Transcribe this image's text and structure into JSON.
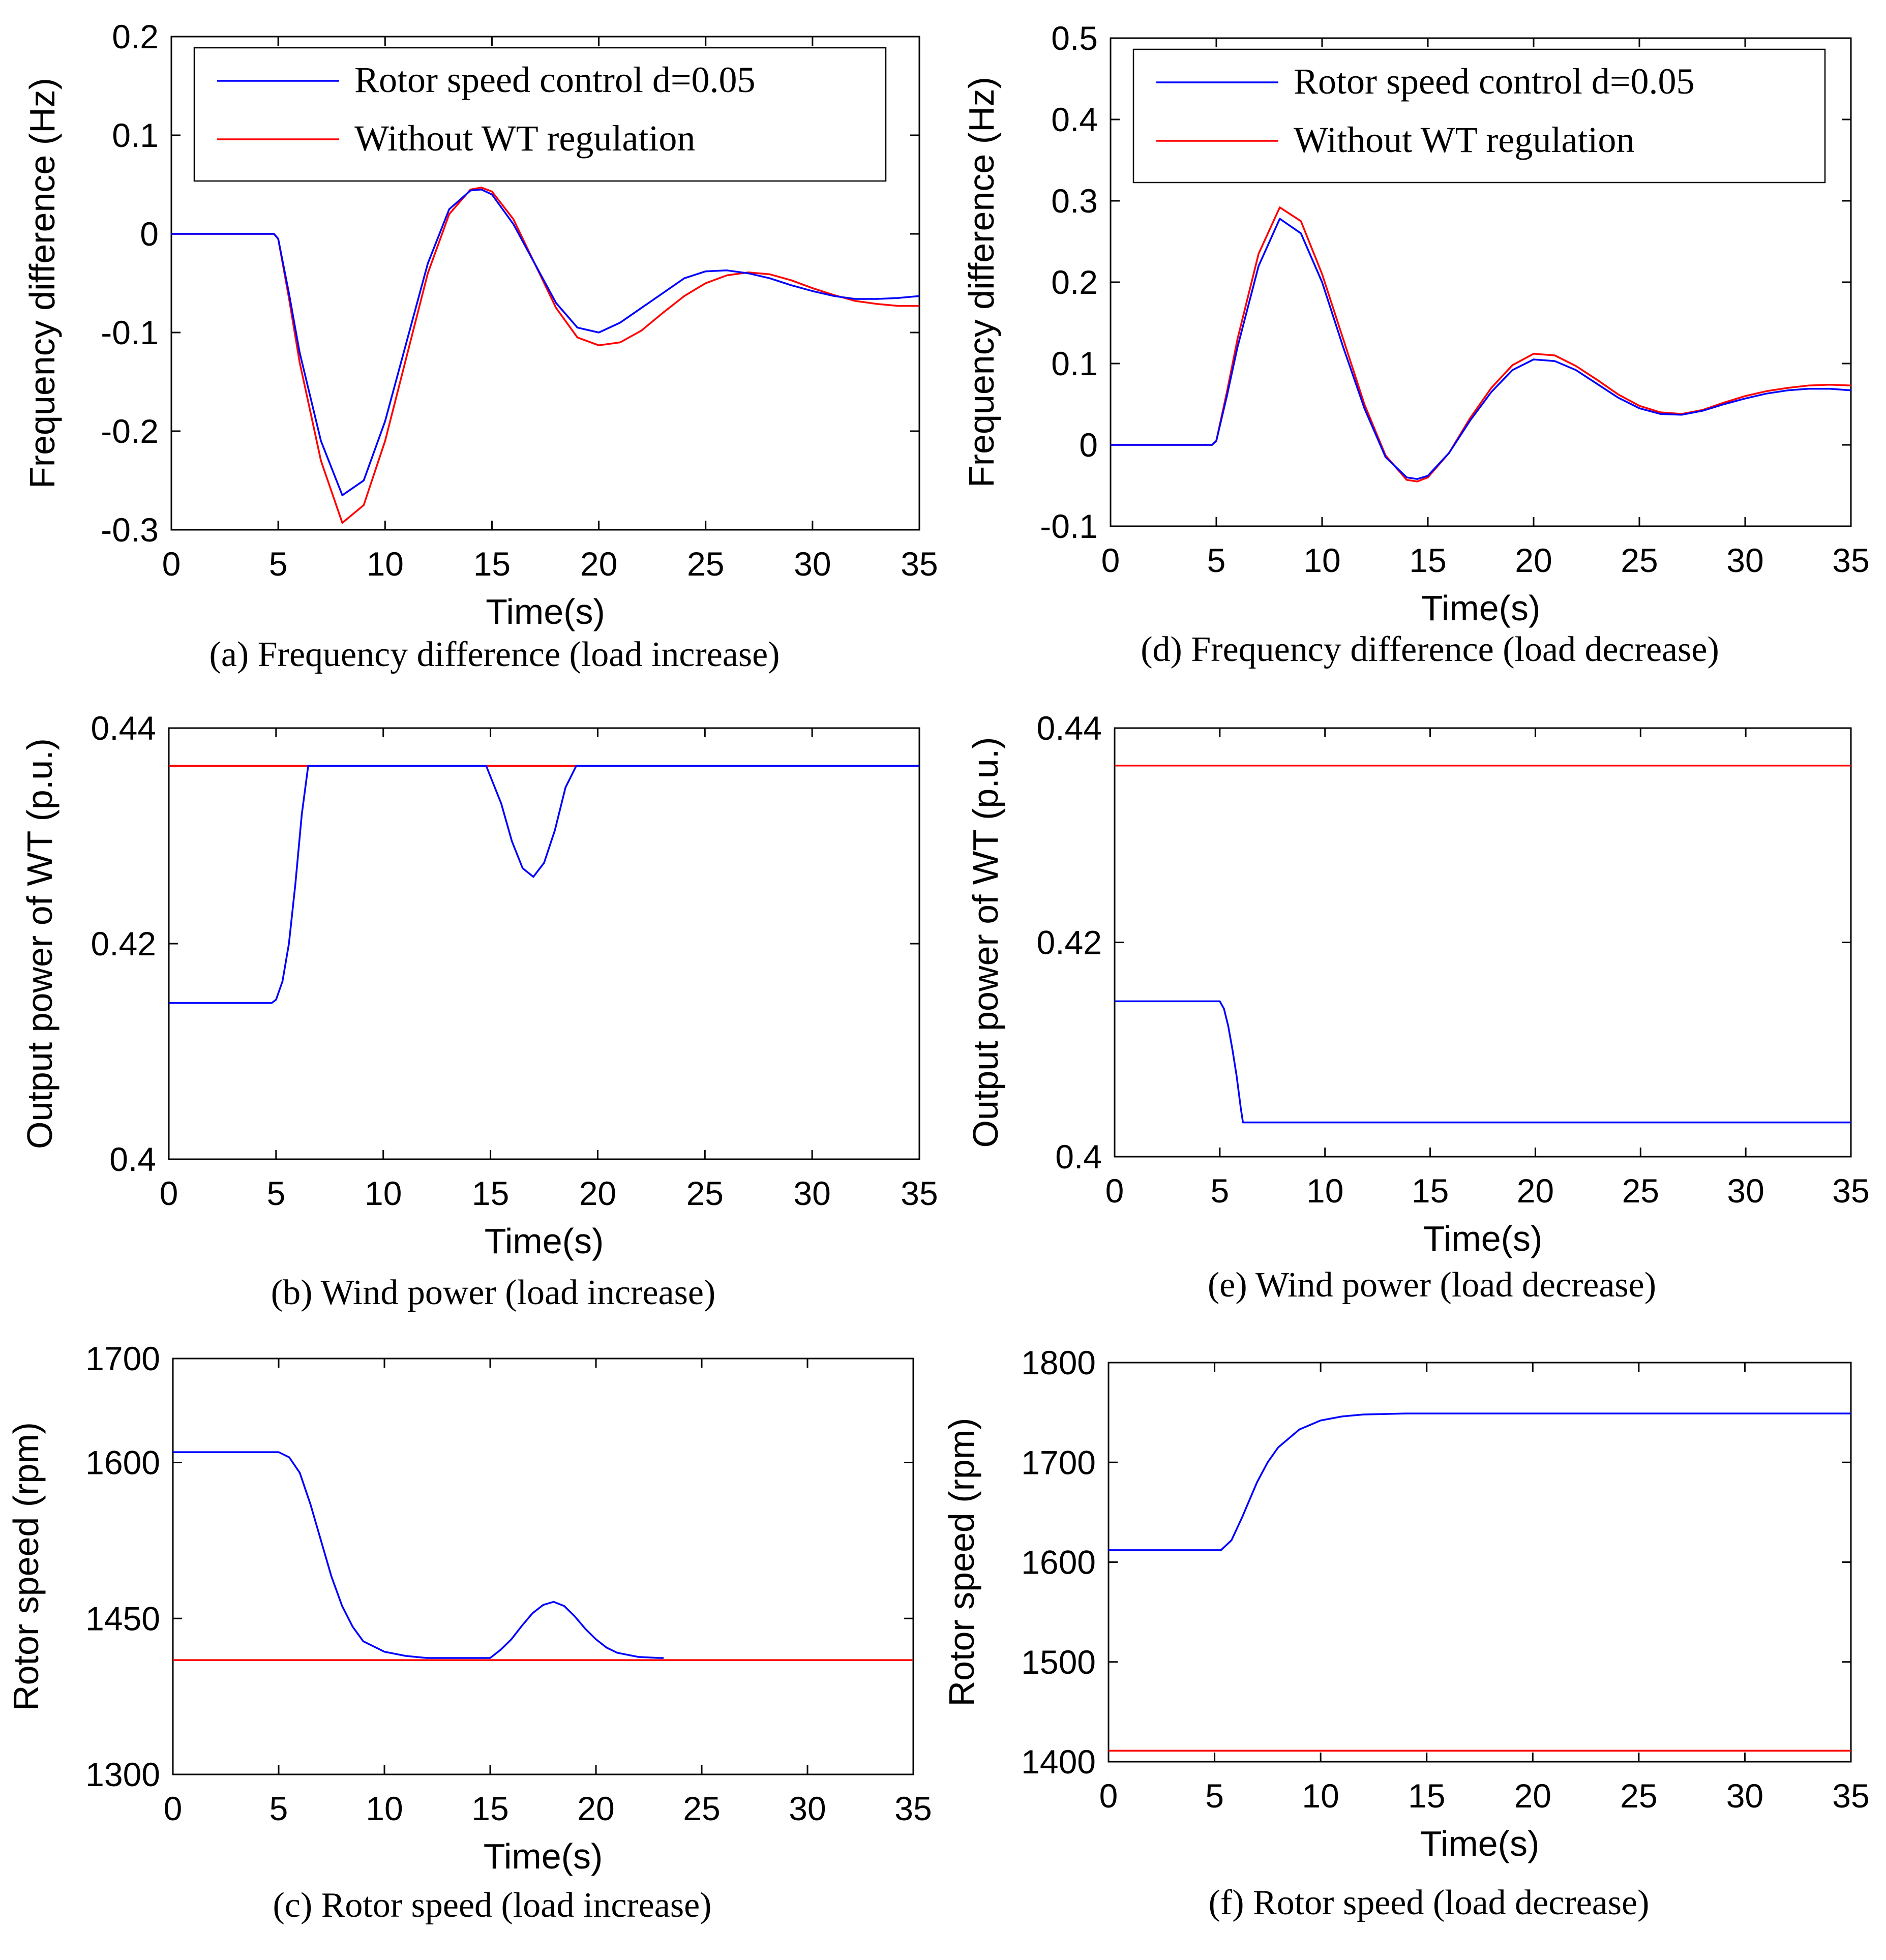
{
  "colors": {
    "series1": "#0000ff",
    "series2": "#ff0000",
    "axis": "#000000",
    "background": "#ffffff"
  },
  "charts": [
    {
      "id": "a",
      "caption": "(a) Frequency difference (load increase)",
      "ylabel": "Frequency difference (Hz)",
      "xlabel": "Time(s)",
      "legend_labels": [
        "Rotor speed control d=0.05",
        "Without WT regulation"
      ],
      "x_ticks": [
        "0",
        "5",
        "10",
        "15",
        "20",
        "25",
        "30",
        "35"
      ],
      "y_ticks": [
        "0.2",
        "0.1",
        "0",
        "-0.1",
        "-0.2",
        "-0.3"
      ]
    },
    {
      "id": "b",
      "caption": "(b) Wind power (load increase)",
      "ylabel": "Output power of WT (p.u.)",
      "xlabel": "Time(s)",
      "x_ticks": [
        "0",
        "5",
        "10",
        "15",
        "20",
        "25",
        "30",
        "35"
      ],
      "y_ticks": [
        "0.44",
        "0.42",
        "0.4"
      ]
    },
    {
      "id": "c",
      "caption": "(c) Rotor speed (load increase)",
      "ylabel": "Rotor speed (rpm)",
      "xlabel": "Time(s)",
      "x_ticks": [
        "0",
        "5",
        "10",
        "15",
        "20",
        "25",
        "30",
        "35"
      ],
      "y_ticks": [
        "1700",
        "1600",
        "1450",
        "1300"
      ]
    },
    {
      "id": "d",
      "caption": "(d) Frequency difference (load decrease)",
      "ylabel": "Frequency difference (Hz)",
      "xlabel": "Time(s)",
      "legend_labels": [
        "Rotor speed control d=0.05",
        "Without WT regulation"
      ],
      "x_ticks": [
        "0",
        "5",
        "10",
        "15",
        "20",
        "25",
        "30",
        "35"
      ],
      "y_ticks": [
        "0.5",
        "0.4",
        "0.3",
        "0.2",
        "0.1",
        "0",
        "-0.1"
      ]
    },
    {
      "id": "e",
      "caption": "(e) Wind power (load decrease)",
      "ylabel": "Output power of WT (p.u.)",
      "xlabel": "Time(s)",
      "x_ticks": [
        "0",
        "5",
        "10",
        "15",
        "20",
        "25",
        "30",
        "35"
      ],
      "y_ticks": [
        "0.44",
        "0.42",
        "0.4"
      ]
    },
    {
      "id": "f",
      "caption": "(f) Rotor speed (load decrease)",
      "ylabel": "Rotor speed (rpm)",
      "xlabel": "Time(s)",
      "x_ticks": [
        "0",
        "5",
        "10",
        "15",
        "20",
        "25",
        "30",
        "35"
      ],
      "y_ticks": [
        "1800",
        "1700",
        "1600",
        "1500",
        "1400"
      ]
    }
  ],
  "chart_data": [
    {
      "id": "a",
      "type": "line",
      "title": "(a) Frequency difference (load increase)",
      "xlabel": "Time(s)",
      "ylabel": "Frequency difference (Hz)",
      "xlim": [
        0,
        35
      ],
      "ylim": [
        -0.3,
        0.2
      ],
      "grid": false,
      "legend": "top-right",
      "series": [
        {
          "name": "Rotor speed control d=0.05",
          "x": [
            0,
            4.8,
            5,
            5.5,
            6,
            7,
            8,
            9,
            10,
            11,
            12,
            13,
            14,
            14.5,
            15,
            16,
            17,
            18,
            19,
            20,
            21,
            22,
            23,
            24,
            25,
            26,
            27,
            28,
            29,
            30,
            31,
            32,
            33,
            34,
            35
          ],
          "y": [
            0,
            0,
            -0.005,
            -0.06,
            -0.12,
            -0.21,
            -0.265,
            -0.25,
            -0.19,
            -0.11,
            -0.03,
            0.025,
            0.044,
            0.045,
            0.04,
            0.01,
            -0.03,
            -0.07,
            -0.095,
            -0.1,
            -0.09,
            -0.075,
            -0.06,
            -0.045,
            -0.038,
            -0.037,
            -0.04,
            -0.045,
            -0.052,
            -0.058,
            -0.063,
            -0.066,
            -0.066,
            -0.065,
            -0.063
          ]
        },
        {
          "name": "Without WT regulation",
          "x": [
            0,
            4.8,
            5,
            5.5,
            6,
            7,
            8,
            9,
            10,
            11,
            12,
            13,
            14,
            14.5,
            15,
            16,
            17,
            18,
            19,
            20,
            21,
            22,
            23,
            24,
            25,
            26,
            27,
            28,
            29,
            30,
            31,
            32,
            33,
            34,
            35
          ],
          "y": [
            0,
            0,
            -0.005,
            -0.065,
            -0.13,
            -0.23,
            -0.293,
            -0.275,
            -0.21,
            -0.125,
            -0.04,
            0.02,
            0.045,
            0.047,
            0.043,
            0.015,
            -0.03,
            -0.075,
            -0.105,
            -0.113,
            -0.11,
            -0.098,
            -0.08,
            -0.063,
            -0.05,
            -0.042,
            -0.039,
            -0.041,
            -0.047,
            -0.055,
            -0.062,
            -0.068,
            -0.071,
            -0.073,
            -0.073
          ]
        }
      ]
    },
    {
      "id": "b",
      "type": "line",
      "title": "(b) Wind power (load increase)",
      "xlabel": "Time(s)",
      "ylabel": "Output power of WT (p.u.)",
      "xlim": [
        0,
        35
      ],
      "ylim": [
        0.4,
        0.44
      ],
      "grid": false,
      "series": [
        {
          "name": "Rotor speed control d=0.05",
          "x": [
            0,
            4.8,
            5,
            5.3,
            5.6,
            5.9,
            6.2,
            6.5,
            7,
            10,
            13.5,
            14.8,
            15.5,
            16,
            16.5,
            17,
            17.5,
            18,
            18.5,
            19,
            20,
            35
          ],
          "y": [
            0.4145,
            0.4145,
            0.4148,
            0.4165,
            0.42,
            0.4255,
            0.432,
            0.4365,
            0.4365,
            0.4365,
            0.4365,
            0.4365,
            0.433,
            0.4295,
            0.427,
            0.4262,
            0.4275,
            0.4305,
            0.4345,
            0.4365,
            0.4365,
            0.4365
          ]
        },
        {
          "name": "Without WT regulation",
          "x": [
            0,
            35
          ],
          "y": [
            0.4365,
            0.4365
          ]
        }
      ]
    },
    {
      "id": "c",
      "type": "line",
      "title": "(c) Rotor speed (load increase)",
      "xlabel": "Time(s)",
      "ylabel": "Rotor speed (rpm)",
      "xlim": [
        0,
        35
      ],
      "ylim": [
        1300,
        1700
      ],
      "grid": false,
      "series": [
        {
          "name": "Rotor speed control d=0.05",
          "x": [
            0,
            5,
            5.5,
            6,
            6.5,
            7,
            7.5,
            8,
            8.5,
            9,
            10,
            11,
            12,
            15,
            15.5,
            16,
            16.5,
            17,
            17.5,
            18,
            18.5,
            19,
            19.5,
            20,
            20.5,
            21,
            22,
            23,
            23.2
          ],
          "y": [
            1610,
            1610,
            1605,
            1590,
            1560,
            1525,
            1490,
            1462,
            1442,
            1428,
            1418,
            1414,
            1412,
            1412,
            1420,
            1430,
            1443,
            1455,
            1463,
            1466,
            1462,
            1452,
            1440,
            1430,
            1422,
            1417,
            1413,
            1412,
            1412
          ]
        },
        {
          "name": "Without WT regulation",
          "x": [
            0,
            35
          ],
          "y": [
            1410,
            1410
          ]
        }
      ]
    },
    {
      "id": "d",
      "type": "line",
      "title": "(d) Frequency difference (load decrease)",
      "xlabel": "Time(s)",
      "ylabel": "Frequency difference (Hz)",
      "xlim": [
        0,
        35
      ],
      "ylim": [
        -0.1,
        0.5
      ],
      "grid": false,
      "legend": "top-right",
      "series": [
        {
          "name": "Rotor speed control d=0.05",
          "x": [
            0,
            4.8,
            5,
            5.5,
            6,
            7,
            8,
            9,
            10,
            11,
            12,
            13,
            14,
            14.5,
            15,
            16,
            17,
            18,
            19,
            20,
            21,
            22,
            23,
            24,
            25,
            26,
            27,
            28,
            29,
            30,
            31,
            32,
            33,
            34,
            35
          ],
          "y": [
            0,
            0,
            0.005,
            0.06,
            0.12,
            0.22,
            0.278,
            0.26,
            0.2,
            0.12,
            0.045,
            -0.015,
            -0.04,
            -0.042,
            -0.038,
            -0.01,
            0.03,
            0.065,
            0.092,
            0.105,
            0.103,
            0.092,
            0.075,
            0.058,
            0.045,
            0.038,
            0.037,
            0.042,
            0.05,
            0.057,
            0.063,
            0.067,
            0.069,
            0.069,
            0.067
          ]
        },
        {
          "name": "Without WT regulation",
          "x": [
            0,
            4.8,
            5,
            5.5,
            6,
            7,
            8,
            9,
            10,
            11,
            12,
            13,
            14,
            14.5,
            15,
            16,
            17,
            18,
            19,
            20,
            21,
            22,
            23,
            24,
            25,
            26,
            27,
            28,
            29,
            30,
            31,
            32,
            33,
            34,
            35
          ],
          "y": [
            0,
            0,
            0.005,
            0.065,
            0.13,
            0.235,
            0.292,
            0.275,
            0.21,
            0.13,
            0.05,
            -0.013,
            -0.043,
            -0.045,
            -0.04,
            -0.01,
            0.033,
            0.07,
            0.098,
            0.112,
            0.11,
            0.097,
            0.08,
            0.062,
            0.048,
            0.04,
            0.038,
            0.043,
            0.052,
            0.06,
            0.066,
            0.07,
            0.073,
            0.074,
            0.073
          ]
        }
      ]
    },
    {
      "id": "e",
      "type": "line",
      "title": "(e) Wind power (load decrease)",
      "xlabel": "Time(s)",
      "ylabel": "Output power of WT (p.u.)",
      "xlim": [
        0,
        35
      ],
      "ylim": [
        0.4,
        0.44
      ],
      "grid": false,
      "series": [
        {
          "name": "Rotor speed control d=0.05",
          "x": [
            0,
            5,
            5.2,
            5.4,
            5.6,
            5.8,
            6,
            6.1,
            35
          ],
          "y": [
            0.4145,
            0.4145,
            0.4138,
            0.4122,
            0.41,
            0.4075,
            0.4045,
            0.4032,
            0.4032
          ]
        },
        {
          "name": "Without WT regulation",
          "x": [
            0,
            35
          ],
          "y": [
            0.4365,
            0.4365
          ]
        }
      ]
    },
    {
      "id": "f",
      "type": "line",
      "title": "(f) Rotor speed (load decrease)",
      "xlabel": "Time(s)",
      "ylabel": "Rotor speed (rpm)",
      "xlim": [
        0,
        35
      ],
      "ylim": [
        1400,
        1800
      ],
      "grid": false,
      "series": [
        {
          "name": "Rotor speed control d=0.05",
          "x": [
            0,
            5.3,
            5.8,
            6.3,
            7,
            7.5,
            8,
            9,
            10,
            11,
            12,
            14,
            35
          ],
          "y": [
            1612,
            1612,
            1622,
            1645,
            1680,
            1700,
            1715,
            1733,
            1742,
            1746,
            1748,
            1749,
            1749
          ]
        },
        {
          "name": "Without WT regulation",
          "x": [
            0,
            35
          ],
          "y": [
            1411,
            1411
          ]
        }
      ]
    }
  ]
}
